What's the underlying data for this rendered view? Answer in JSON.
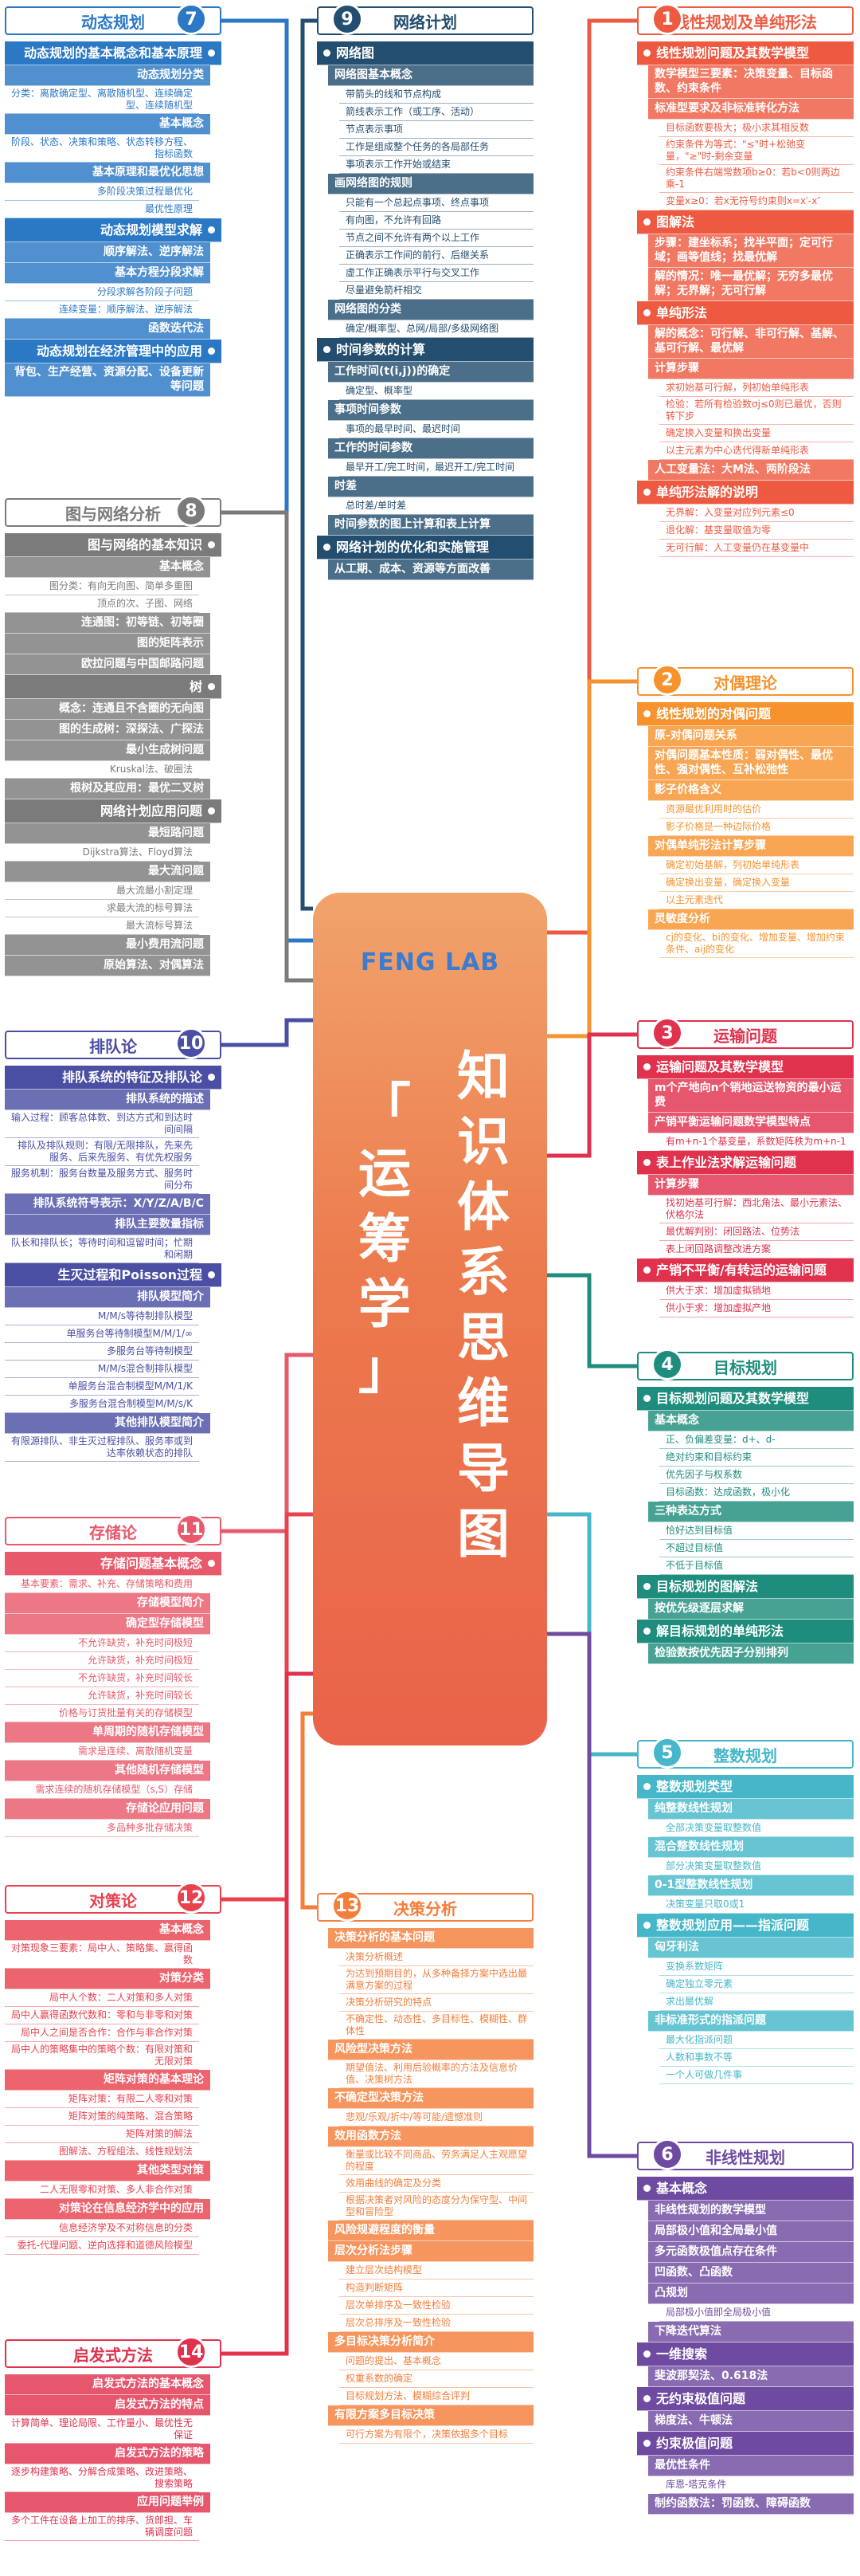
{
  "center": {
    "logo": "FENG LAB",
    "title_col1": "知识体系思维导图",
    "title_col2": "「运筹学」"
  },
  "colors": {
    "s1": "#ee5a41",
    "s2": "#f6932f",
    "s3": "#e0314d",
    "s4": "#1e8d7d",
    "s5": "#45b7c9",
    "s6": "#6e4ba0",
    "s7": "#2b78c5",
    "s8": "#7b7b7b",
    "s9": "#244e6f",
    "s10": "#4a4fa3",
    "s11": "#e85a6b",
    "s12": "#e8424e",
    "s13": "#f47e3a",
    "s14": "#e0314d"
  },
  "sections": [
    {
      "id": "s1",
      "num": "1",
      "title": "线性规划及单纯形法",
      "rows": [
        {
          "l": 1,
          "t": "线性规划问题及其数学模型"
        },
        {
          "l": 2,
          "t": "数学模型三要素：决策变量、目标函数、约束条件"
        },
        {
          "l": 2,
          "t": "标准型要求及非标准转化方法"
        },
        {
          "l": 3,
          "t": "目标函数要极大；极小求其相反数"
        },
        {
          "l": 3,
          "t": "约束条件为等式：\"≤\"时+松弛变量，\"≥\"时-剩余变量"
        },
        {
          "l": 3,
          "t": "约束条件右端常数项b≥0：若b<0则两边乘-1"
        },
        {
          "l": 3,
          "t": "变量x≥0：若x无符号约束则x=x′-x″"
        },
        {
          "l": 1,
          "t": "图解法"
        },
        {
          "l": 2,
          "t": "步骤：建坐标系；找半平面；定可行域；画等值线；找最优解"
        },
        {
          "l": 2,
          "t": "解的情况：唯一最优解；无穷多最优解；无界解；无可行解"
        },
        {
          "l": 1,
          "t": "单纯形法"
        },
        {
          "l": 2,
          "t": "解的概念：可行解、非可行解、基解、基可行解、最优解"
        },
        {
          "l": 2,
          "t": "计算步骤"
        },
        {
          "l": 3,
          "t": "求初始基可行解，列初始单纯形表"
        },
        {
          "l": 3,
          "t": "检验：若所有检验数σj≤0则已最优，否则转下步"
        },
        {
          "l": 3,
          "t": "确定换入变量和换出变量"
        },
        {
          "l": 3,
          "t": "以主元素为中心迭代得新单纯形表"
        },
        {
          "l": 2,
          "t": "人工变量法：大M法、两阶段法"
        },
        {
          "l": 1,
          "t": "单纯形法解的说明"
        },
        {
          "l": 3,
          "t": "无界解：入变量对应列元素≤0"
        },
        {
          "l": 3,
          "t": "退化解：基变量取值为零"
        },
        {
          "l": 3,
          "t": "无可行解：人工变量仍在基变量中"
        }
      ]
    },
    {
      "id": "s2",
      "num": "2",
      "title": "对偶理论",
      "rows": [
        {
          "l": 1,
          "t": "线性规划的对偶问题"
        },
        {
          "l": 2,
          "t": "原-对偶问题关系"
        },
        {
          "l": 2,
          "t": "对偶问题基本性质：弱对偶性、最优性、强对偶性、互补松弛性"
        },
        {
          "l": 2,
          "t": "影子价格含义"
        },
        {
          "l": 3,
          "t": "资源最优利用时的估价"
        },
        {
          "l": 3,
          "t": "影子价格是一种边际价格"
        },
        {
          "l": 2,
          "t": "对偶单纯形法计算步骤"
        },
        {
          "l": 3,
          "t": "确定初始基解，列初始单纯形表"
        },
        {
          "l": 3,
          "t": "确定换出变量，确定换入变量"
        },
        {
          "l": 3,
          "t": "以主元素迭代"
        },
        {
          "l": 2,
          "t": "灵敏度分析"
        },
        {
          "l": 3,
          "t": "cj的变化、bi的变化、增加变量、增加约束条件、aij的变化"
        }
      ]
    },
    {
      "id": "s3",
      "num": "3",
      "title": "运输问题",
      "rows": [
        {
          "l": 1,
          "t": "运输问题及其数学模型"
        },
        {
          "l": 2,
          "t": "m个产地向n个销地运送物资的最小运费"
        },
        {
          "l": 2,
          "t": "产销平衡运输问题数学模型特点"
        },
        {
          "l": 3,
          "t": "有m+n-1个基变量，系数矩阵秩为m+n-1"
        },
        {
          "l": 1,
          "t": "表上作业法求解运输问题"
        },
        {
          "l": 2,
          "t": "计算步骤"
        },
        {
          "l": 3,
          "t": "找初始基可行解：西北角法、最小元素法、伏格尔法"
        },
        {
          "l": 3,
          "t": "最优解判别：闭回路法、位势法"
        },
        {
          "l": 3,
          "t": "表上闭回路调整改进方案"
        },
        {
          "l": 1,
          "t": "产销不平衡/有转运的运输问题"
        },
        {
          "l": 3,
          "t": "供大于求：增加虚拟销地"
        },
        {
          "l": 3,
          "t": "供小于求：增加虚拟产地"
        }
      ]
    },
    {
      "id": "s4",
      "num": "4",
      "title": "目标规划",
      "rows": [
        {
          "l": 1,
          "t": "目标规划问题及其数学模型"
        },
        {
          "l": 2,
          "t": "基本概念"
        },
        {
          "l": 3,
          "t": "正、负偏差变量：d+、d-"
        },
        {
          "l": 3,
          "t": "绝对约束和目标约束"
        },
        {
          "l": 3,
          "t": "优先因子与权系数"
        },
        {
          "l": 3,
          "t": "目标函数：达成函数，极小化"
        },
        {
          "l": 2,
          "t": "三种表达方式"
        },
        {
          "l": 3,
          "t": "恰好达到目标值"
        },
        {
          "l": 3,
          "t": "不超过目标值"
        },
        {
          "l": 3,
          "t": "不低于目标值"
        },
        {
          "l": 1,
          "t": "目标规划的图解法"
        },
        {
          "l": 2,
          "t": "按优先级逐层求解"
        },
        {
          "l": 1,
          "t": "解目标规划的单纯形法"
        },
        {
          "l": 2,
          "t": "检验数按优先因子分别排列"
        }
      ]
    },
    {
      "id": "s5",
      "num": "5",
      "title": "整数规划",
      "rows": [
        {
          "l": 1,
          "t": "整数规划类型"
        },
        {
          "l": 2,
          "t": "纯整数线性规划"
        },
        {
          "l": 3,
          "t": "全部决策变量取整数值"
        },
        {
          "l": 2,
          "t": "混合整数线性规划"
        },
        {
          "l": 3,
          "t": "部分决策变量取整数值"
        },
        {
          "l": 2,
          "t": "0-1型整数线性规划"
        },
        {
          "l": 3,
          "t": "决策变量只取0或1"
        },
        {
          "l": 1,
          "t": "整数规划应用——指派问题"
        },
        {
          "l": 2,
          "t": "匈牙利法"
        },
        {
          "l": 3,
          "t": "变换系数矩阵"
        },
        {
          "l": 3,
          "t": "确定独立零元素"
        },
        {
          "l": 3,
          "t": "求出最优解"
        },
        {
          "l": 2,
          "t": "非标准形式的指派问题"
        },
        {
          "l": 3,
          "t": "最大化指派问题"
        },
        {
          "l": 3,
          "t": "人数和事数不等"
        },
        {
          "l": 3,
          "t": "一个人可做几件事"
        }
      ]
    },
    {
      "id": "s6",
      "num": "6",
      "title": "非线性规划",
      "rows": [
        {
          "l": 1,
          "t": "基本概念"
        },
        {
          "l": 2,
          "t": "非线性规划的数学模型"
        },
        {
          "l": 2,
          "t": "局部极小值和全局最小值"
        },
        {
          "l": 2,
          "t": "多元函数极值点存在条件"
        },
        {
          "l": 2,
          "t": "凹函数、凸函数"
        },
        {
          "l": 2,
          "t": "凸规划"
        },
        {
          "l": 3,
          "t": "局部极小值即全局极小值"
        },
        {
          "l": 2,
          "t": "下降迭代算法"
        },
        {
          "l": 1,
          "t": "一维搜索"
        },
        {
          "l": 2,
          "t": "斐波那契法、0.618法"
        },
        {
          "l": 1,
          "t": "无约束极值问题"
        },
        {
          "l": 2,
          "t": "梯度法、牛顿法"
        },
        {
          "l": 1,
          "t": "约束极值问题"
        },
        {
          "l": 2,
          "t": "最优性条件"
        },
        {
          "l": 3,
          "t": "库恩-塔克条件"
        },
        {
          "l": 2,
          "t": "制约函数法：罚函数、障碍函数"
        }
      ]
    },
    {
      "id": "s7",
      "num": "7",
      "title": "动态规划",
      "rows": [
        {
          "l": 1,
          "t": "动态规划的基本概念和基本原理"
        },
        {
          "l": 2,
          "t": "动态规划分类"
        },
        {
          "l": 3,
          "t": "分类：离散确定型、离散随机型、连续确定型、连续随机型"
        },
        {
          "l": 2,
          "t": "基本概念"
        },
        {
          "l": 3,
          "t": "阶段、状态、决策和策略、状态转移方程、指标函数"
        },
        {
          "l": 2,
          "t": "基本原理和最优化思想"
        },
        {
          "l": 3,
          "t": "多阶段决策过程最优化"
        },
        {
          "l": 3,
          "t": "最优性原理"
        },
        {
          "l": 1,
          "t": "动态规划模型求解"
        },
        {
          "l": 2,
          "t": "顺序解法、逆序解法"
        },
        {
          "l": 2,
          "t": "基本方程分段求解"
        },
        {
          "l": 3,
          "t": "分段求解各阶段子问题"
        },
        {
          "l": 3,
          "t": "连续变量：顺序解法、逆序解法"
        },
        {
          "l": 2,
          "t": "函数迭代法"
        },
        {
          "l": 1,
          "t": "动态规划在经济管理中的应用"
        },
        {
          "l": 2,
          "t": "背包、生产经营、资源分配、设备更新等问题"
        }
      ]
    },
    {
      "id": "s8",
      "num": "8",
      "title": "图与网络分析",
      "rows": [
        {
          "l": 1,
          "t": "图与网络的基本知识"
        },
        {
          "l": 2,
          "t": "基本概念"
        },
        {
          "l": 3,
          "t": "图分类：有向无向图、简单多重图"
        },
        {
          "l": 3,
          "t": "顶点的次、子图、网络"
        },
        {
          "l": 2,
          "t": "连通图：初等链、初等圈"
        },
        {
          "l": 2,
          "t": "图的矩阵表示"
        },
        {
          "l": 2,
          "t": "欧拉问题与中国邮路问题"
        },
        {
          "l": 1,
          "t": "树"
        },
        {
          "l": 2,
          "t": "概念：连通且不含圈的无向图"
        },
        {
          "l": 2,
          "t": "图的生成树：深探法、广探法"
        },
        {
          "l": 2,
          "t": "最小生成树问题"
        },
        {
          "l": 3,
          "t": "Kruskal法、破圈法"
        },
        {
          "l": 2,
          "t": "根树及其应用：最优二叉树"
        },
        {
          "l": 1,
          "t": "网络计划应用问题"
        },
        {
          "l": 2,
          "t": "最短路问题"
        },
        {
          "l": 3,
          "t": "Dijkstra算法、Floyd算法"
        },
        {
          "l": 2,
          "t": "最大流问题"
        },
        {
          "l": 3,
          "t": "最大流最小割定理"
        },
        {
          "l": 3,
          "t": "求最大流的标号算法"
        },
        {
          "l": 3,
          "t": "最大流标号算法"
        },
        {
          "l": 2,
          "t": "最小费用流问题"
        },
        {
          "l": 2,
          "t": "原始算法、对偶算法"
        }
      ]
    },
    {
      "id": "s9",
      "num": "9",
      "title": "网络计划",
      "rows": [
        {
          "l": 1,
          "t": "网络图"
        },
        {
          "l": 2,
          "t": "网络图基本概念"
        },
        {
          "l": 3,
          "t": "带箭头的线和节点构成"
        },
        {
          "l": 3,
          "t": "箭线表示工作（或工序、活动）"
        },
        {
          "l": 3,
          "t": "节点表示事项"
        },
        {
          "l": 3,
          "t": "工作是组成整个任务的各局部任务"
        },
        {
          "l": 3,
          "t": "事项表示工作开始或结束"
        },
        {
          "l": 2,
          "t": "画网络图的规则"
        },
        {
          "l": 3,
          "t": "只能有一个总起点事项、终点事项"
        },
        {
          "l": 3,
          "t": "有向图，不允许有回路"
        },
        {
          "l": 3,
          "t": "节点之间不允许有两个以上工作"
        },
        {
          "l": 3,
          "t": "正确表示工作间的前行、后继关系"
        },
        {
          "l": 3,
          "t": "虚工作正确表示平行与交叉工作"
        },
        {
          "l": 3,
          "t": "尽量避免箭杆相交"
        },
        {
          "l": 2,
          "t": "网络图的分类"
        },
        {
          "l": 3,
          "t": "确定/概率型、总网/局部/多级网络图"
        },
        {
          "l": 1,
          "t": "时间参数的计算"
        },
        {
          "l": 2,
          "t": "工作时间(t(i,j))的确定"
        },
        {
          "l": 3,
          "t": "确定型、概率型"
        },
        {
          "l": 2,
          "t": "事项时间参数"
        },
        {
          "l": 3,
          "t": "事项的最早时间、最迟时间"
        },
        {
          "l": 2,
          "t": "工作的时间参数"
        },
        {
          "l": 3,
          "t": "最早开工/完工时间，最迟开工/完工时间"
        },
        {
          "l": 2,
          "t": "时差"
        },
        {
          "l": 3,
          "t": "总时差/单时差"
        },
        {
          "l": 2,
          "t": "时间参数的图上计算和表上计算"
        },
        {
          "l": 1,
          "t": "网络计划的优化和实施管理"
        },
        {
          "l": 2,
          "t": "从工期、成本、资源等方面改善"
        }
      ]
    },
    {
      "id": "s10",
      "num": "10",
      "title": "排队论",
      "rows": [
        {
          "l": 1,
          "t": "排队系统的特征及排队论"
        },
        {
          "l": 2,
          "t": "排队系统的描述"
        },
        {
          "l": 3,
          "t": "输入过程：顾客总体数、到达方式和到达时间间隔"
        },
        {
          "l": 3,
          "t": "排队及排队规则：有限/无限排队，先来先服务、后来先服务、有优先权服务"
        },
        {
          "l": 3,
          "t": "服务机制：服务台数量及服务方式、服务时间分布"
        },
        {
          "l": 2,
          "t": "排队系统符号表示：X/Y/Z/A/B/C"
        },
        {
          "l": 2,
          "t": "排队主要数量指标"
        },
        {
          "l": 3,
          "t": "队长和排队长；等待时间和逗留时间；忙期和闲期"
        },
        {
          "l": 1,
          "t": "生灭过程和Poisson过程"
        },
        {
          "l": 2,
          "t": "排队模型简介"
        },
        {
          "l": 3,
          "t": "M/M/s等待制排队模型"
        },
        {
          "l": 3,
          "t": "单服务台等待制模型M/M/1/∞"
        },
        {
          "l": 3,
          "t": "多服务台等待制模型"
        },
        {
          "l": 3,
          "t": "M/M/s混合制排队模型"
        },
        {
          "l": 3,
          "t": "单服务台混合制模型M/M/1/K"
        },
        {
          "l": 3,
          "t": "多服务台混合制模型M/M/s/K"
        },
        {
          "l": 2,
          "t": "其他排队模型简介"
        },
        {
          "l": 3,
          "t": "有限源排队、非生灭过程排队、服务率或到达率依赖状态的排队"
        }
      ]
    },
    {
      "id": "s11",
      "num": "11",
      "title": "存储论",
      "rows": [
        {
          "l": 1,
          "t": "存储问题基本概念"
        },
        {
          "l": 3,
          "t": "基本要素：需求、补充、存储策略和费用"
        },
        {
          "l": 2,
          "t": "存储模型简介"
        },
        {
          "l": 2,
          "t": "确定型存储模型"
        },
        {
          "l": 3,
          "t": "不允许缺货，补充时间极短"
        },
        {
          "l": 3,
          "t": "允许缺货，补充时间极短"
        },
        {
          "l": 3,
          "t": "不允许缺货，补充时间较长"
        },
        {
          "l": 3,
          "t": "允许缺货，补充时间较长"
        },
        {
          "l": 3,
          "t": "价格与订货批量有关的存储模型"
        },
        {
          "l": 2,
          "t": "单周期的随机存储模型"
        },
        {
          "l": 3,
          "t": "需求是连续、离散随机变量"
        },
        {
          "l": 2,
          "t": "其他随机存储模型"
        },
        {
          "l": 3,
          "t": "需求连续的随机存储模型（s,S）存储"
        },
        {
          "l": 2,
          "t": "存储论应用问题"
        },
        {
          "l": 3,
          "t": "多品种多批存储决策"
        }
      ]
    },
    {
      "id": "s12",
      "num": "12",
      "title": "对策论",
      "rows": [
        {
          "l": 2,
          "t": "基本概念"
        },
        {
          "l": 3,
          "t": "对策现象三要素：局中人、策略集、赢得函数"
        },
        {
          "l": 2,
          "t": "对策分类"
        },
        {
          "l": 3,
          "t": "局中人个数：二人对策和多人对策"
        },
        {
          "l": 3,
          "t": "局中人赢得函数代数和：零和与非零和对策"
        },
        {
          "l": 3,
          "t": "局中人之间是否合作：合作与非合作对策"
        },
        {
          "l": 3,
          "t": "局中人的策略集中的策略个数：有限对策和无限对策"
        },
        {
          "l": 2,
          "t": "矩阵对策的基本理论"
        },
        {
          "l": 3,
          "t": "矩阵对策：有限二人零和对策"
        },
        {
          "l": 3,
          "t": "矩阵对策的纯策略、混合策略"
        },
        {
          "l": 3,
          "t": "矩阵对策的解法"
        },
        {
          "l": 3,
          "t": "图解法、方程组法、线性规划法"
        },
        {
          "l": 2,
          "t": "其他类型对策"
        },
        {
          "l": 3,
          "t": "二人无限零和对策、多人非合作对策"
        },
        {
          "l": 2,
          "t": "对策论在信息经济学中的应用"
        },
        {
          "l": 3,
          "t": "信息经济学及不对称信息的分类"
        },
        {
          "l": 3,
          "t": "委托-代理问题、逆向选择和道德风险模型"
        }
      ]
    },
    {
      "id": "s13",
      "num": "13",
      "title": "决策分析",
      "rows": [
        {
          "l": 2,
          "t": "决策分析的基本问题"
        },
        {
          "l": 3,
          "t": "决策分析概述"
        },
        {
          "l": 3,
          "t": "为达到预期目的，从多种备择方案中选出最满意方案的过程"
        },
        {
          "l": 3,
          "t": "决策分析研究的特点"
        },
        {
          "l": 3,
          "t": "不确定性、动态性、多目标性、模糊性、群体性"
        },
        {
          "l": 2,
          "t": "风险型决策方法"
        },
        {
          "l": 3,
          "t": "期望值法、利用后验概率的方法及信息价值、决策树方法"
        },
        {
          "l": 2,
          "t": "不确定型决策方法"
        },
        {
          "l": 3,
          "t": "悲观/乐观/折中/等可能/遗憾准则"
        },
        {
          "l": 2,
          "t": "效用函数方法"
        },
        {
          "l": 3,
          "t": "衡量或比较不同商品、劳务满足人主观愿望的程度"
        },
        {
          "l": 3,
          "t": "效用曲线的确定及分类"
        },
        {
          "l": 3,
          "t": "根据决策者对风险的态度分为保守型、中间型和冒险型"
        },
        {
          "l": 2,
          "t": "风险规避程度的衡量"
        },
        {
          "l": 2,
          "t": "层次分析法步骤"
        },
        {
          "l": 3,
          "t": "建立层次结构模型"
        },
        {
          "l": 3,
          "t": "构造判断矩阵"
        },
        {
          "l": 3,
          "t": "层次单排序及一致性检验"
        },
        {
          "l": 3,
          "t": "层次总排序及一致性检验"
        },
        {
          "l": 2,
          "t": "多目标决策分析简介"
        },
        {
          "l": 3,
          "t": "问题的提出、基本概念"
        },
        {
          "l": 3,
          "t": "权重系数的确定"
        },
        {
          "l": 3,
          "t": "目标规划方法、模糊综合评判"
        },
        {
          "l": 2,
          "t": "有限方案多目标决策"
        },
        {
          "l": 3,
          "t": "可行方案为有限个，决策依据多个目标"
        }
      ]
    },
    {
      "id": "s14",
      "num": "14",
      "title": "启发式方法",
      "rows": [
        {
          "l": 2,
          "t": "启发式方法的基本概念"
        },
        {
          "l": 2,
          "t": "启发式方法的特点"
        },
        {
          "l": 3,
          "t": "计算简单、理论局限、工作量小、最优性无保证"
        },
        {
          "l": 2,
          "t": "启发式方法的策略"
        },
        {
          "l": 3,
          "t": "逐步构建策略、分解合成策略、改进策略、搜索策略"
        },
        {
          "l": 2,
          "t": "应用问题举例"
        },
        {
          "l": 3,
          "t": "多个工件在设备上加工的排序、货郎担、车辆调度问题"
        }
      ]
    }
  ]
}
